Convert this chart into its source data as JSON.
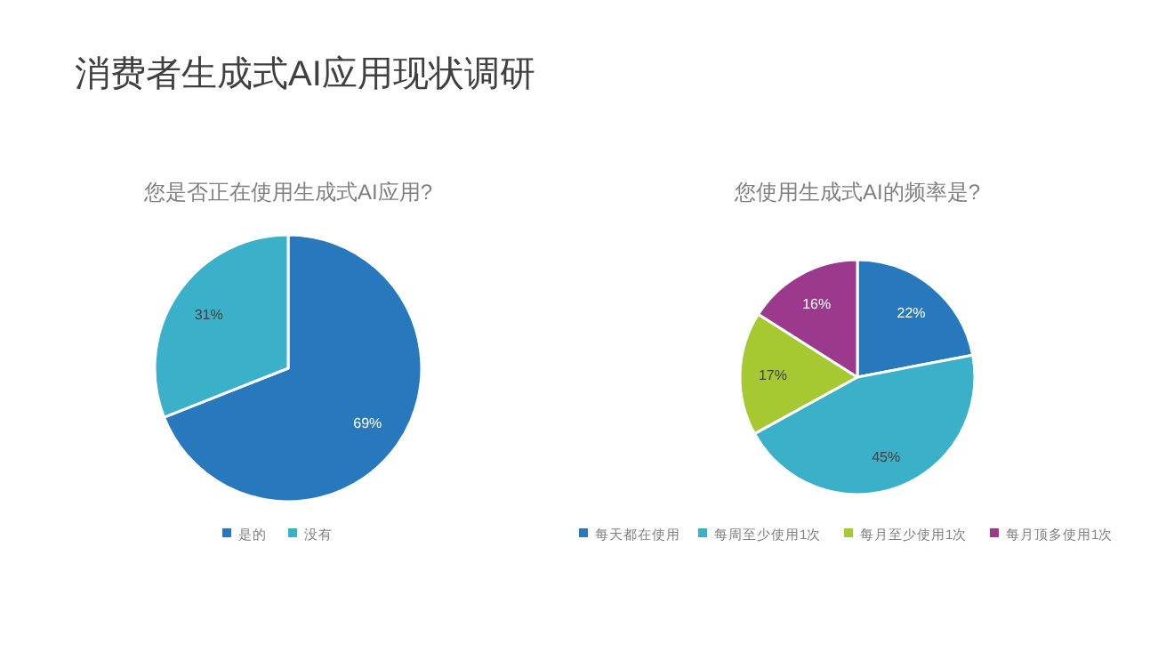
{
  "chart_data": [
    {
      "type": "pie",
      "title": "您是否正在使用生成式AI应用?",
      "annotations": [
        "消费者生成式AI应用现状调研"
      ],
      "categories": [
        "是的",
        "没有"
      ],
      "values": [
        69,
        31
      ],
      "value_labels": [
        "69%",
        "31%"
      ],
      "colors": [
        "#2878bd",
        "#3bb0c9"
      ],
      "legend": "bottom"
    },
    {
      "type": "pie",
      "title": "您使用生成式AI的频率是?",
      "categories": [
        "每天都在使用",
        "每周至少使用1次",
        "每月至少使用1次",
        "每月顶多使用1次"
      ],
      "values": [
        22,
        45,
        17,
        16
      ],
      "value_labels": [
        "22%",
        "45%",
        "17%",
        "16%"
      ],
      "colors": [
        "#2878bd",
        "#3bb0c9",
        "#a6c831",
        "#9b3a8c"
      ],
      "legend": "bottom"
    }
  ]
}
